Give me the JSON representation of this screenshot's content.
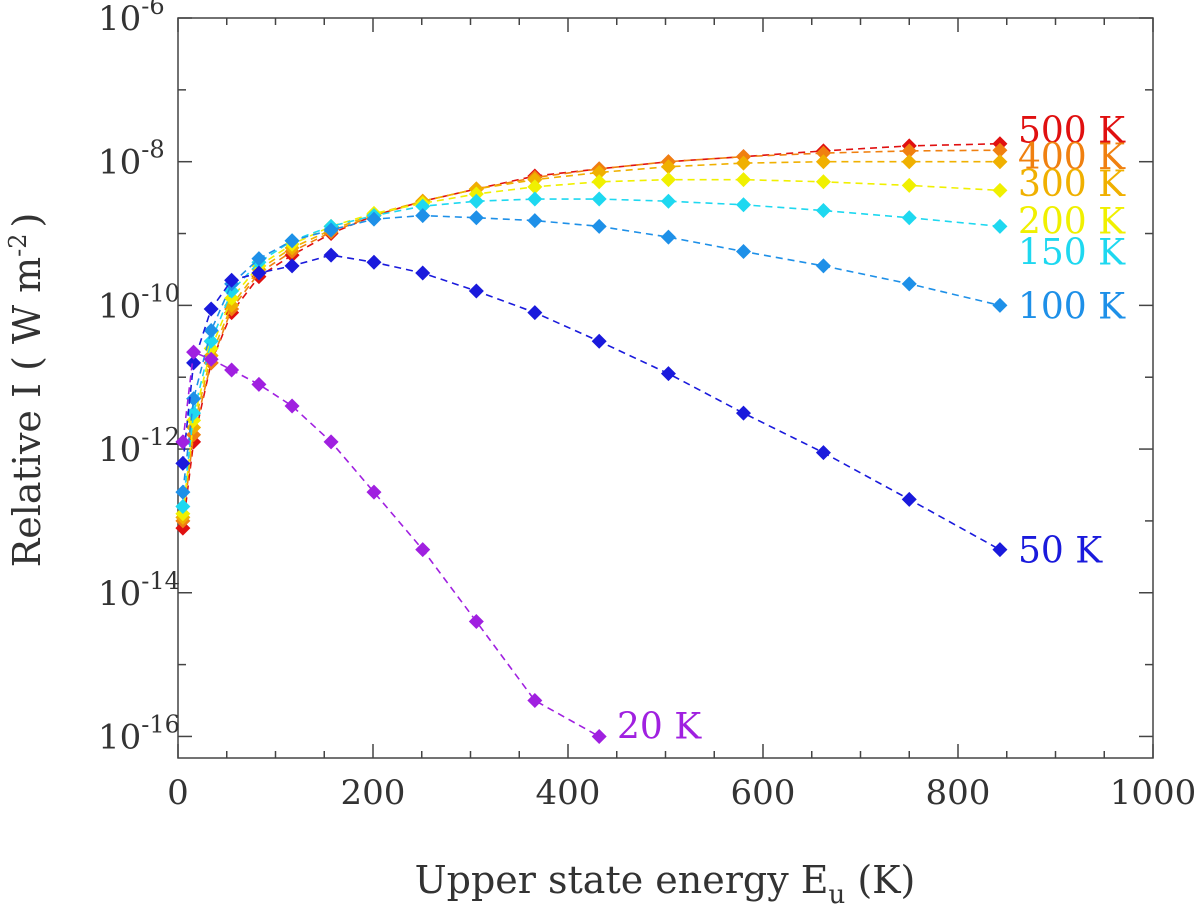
{
  "chart_data": {
    "type": "scatter",
    "title": "",
    "xlabel": "Upper state energy E",
    "xlabel_sub": "u",
    "xlabel_unit": " (K)",
    "ylabel": "Relative I  ( W m",
    "ylabel_sup": "-2",
    "ylabel_end": ")",
    "x_ticks": [
      "0",
      "200",
      "400",
      "600",
      "800",
      "1000"
    ],
    "y_ticks": [
      {
        "base": "10",
        "exp": "-6",
        "value": -6
      },
      {
        "base": "10",
        "exp": "-8",
        "value": -8
      },
      {
        "base": "10",
        "exp": "-10",
        "value": -10
      },
      {
        "base": "10",
        "exp": "-12",
        "value": -12
      },
      {
        "base": "10",
        "exp": "-14",
        "value": -14
      },
      {
        "base": "10",
        "exp": "-16",
        "value": -16
      }
    ],
    "xlim": [
      0,
      1000
    ],
    "ylim_log10": [
      -16.3,
      -6
    ],
    "grid": false,
    "legend": "inline labels at line ends",
    "x": [
      5,
      16,
      34,
      55,
      83,
      117,
      157,
      201,
      251,
      306,
      366,
      432,
      503,
      580,
      662,
      750,
      843
    ],
    "series": [
      {
        "name": "20 K",
        "color": "#a020e0",
        "log10_values": [
          -11.9,
          -10.65,
          -10.75,
          -10.9,
          -11.1,
          -11.4,
          -11.9,
          -12.6,
          -13.4,
          -14.4,
          -15.5,
          -16.0
        ]
      },
      {
        "name": "50 K",
        "color": "#1a1adc",
        "log10_values": [
          -12.2,
          -10.8,
          -10.05,
          -9.65,
          -9.55,
          -9.45,
          -9.3,
          -9.4,
          -9.55,
          -9.8,
          -10.1,
          -10.5,
          -10.95,
          -11.5,
          -12.05,
          -12.7,
          -13.4
        ]
      },
      {
        "name": "100 K",
        "color": "#1e90e8",
        "log10_values": [
          -12.6,
          -11.3,
          -10.35,
          -9.7,
          -9.35,
          -9.1,
          -8.95,
          -8.8,
          -8.75,
          -8.78,
          -8.82,
          -8.9,
          -9.05,
          -9.25,
          -9.45,
          -9.7,
          -10.0
        ]
      },
      {
        "name": "150 K",
        "color": "#1ed8f0",
        "log10_values": [
          -12.8,
          -11.5,
          -10.5,
          -9.8,
          -9.4,
          -9.1,
          -8.9,
          -8.75,
          -8.62,
          -8.55,
          -8.52,
          -8.52,
          -8.55,
          -8.6,
          -8.68,
          -8.78,
          -8.9
        ]
      },
      {
        "name": "200 K",
        "color": "#f0f000",
        "log10_values": [
          -12.9,
          -11.6,
          -10.6,
          -9.9,
          -9.45,
          -9.15,
          -8.9,
          -8.72,
          -8.58,
          -8.45,
          -8.35,
          -8.28,
          -8.25,
          -8.25,
          -8.28,
          -8.33,
          -8.4
        ]
      },
      {
        "name": "300 K",
        "color": "#f0b000",
        "log10_values": [
          -12.95,
          -11.7,
          -10.7,
          -10.0,
          -9.5,
          -9.2,
          -8.95,
          -8.73,
          -8.55,
          -8.38,
          -8.25,
          -8.15,
          -8.07,
          -8.02,
          -8.0,
          -8.0,
          -8.0
        ]
      },
      {
        "name": "400 K",
        "color": "#f08010",
        "log10_values": [
          -13.0,
          -11.8,
          -10.8,
          -10.05,
          -9.55,
          -9.25,
          -8.98,
          -8.75,
          -8.55,
          -8.38,
          -8.22,
          -8.1,
          -8.0,
          -7.93,
          -7.88,
          -7.85,
          -7.84
        ]
      },
      {
        "name": "500 K",
        "color": "#e01010",
        "log10_values": [
          -13.1,
          -11.9,
          -10.8,
          -10.1,
          -9.6,
          -9.3,
          -9.0,
          -8.75,
          -8.55,
          -8.38,
          -8.2,
          -8.1,
          -8.0,
          -7.93,
          -7.85,
          -7.78,
          -7.75
        ]
      }
    ],
    "series_labels": [
      {
        "text": "500 K",
        "color": "#e01010",
        "log10_y": -7.55
      },
      {
        "text": "400 K",
        "color": "#f08010",
        "log10_y": -7.92
      },
      {
        "text": "300 K",
        "color": "#f0b000",
        "log10_y": -8.3
      },
      {
        "text": "200 K",
        "color": "#f0f000",
        "log10_y": -8.82
      },
      {
        "text": "150 K",
        "color": "#1ed8f0",
        "log10_y": -9.25
      },
      {
        "text": "100 K",
        "color": "#1e90e8",
        "log10_y": -10.0
      },
      {
        "text": "50 K",
        "color": "#1a1adc",
        "log10_y": -13.4
      },
      {
        "text": "20 K",
        "color": "#a020e0",
        "log10_y": -15.85
      }
    ]
  }
}
